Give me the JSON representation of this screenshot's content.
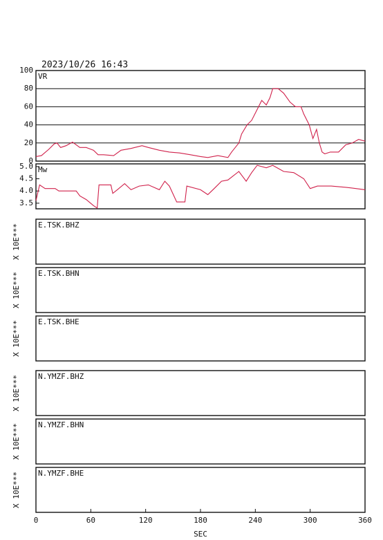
{
  "timestamp": "2023/10/26 16:43",
  "chart_data": [
    {
      "type": "line",
      "title": "VR",
      "color": "#d0204a",
      "grid": true,
      "xlim": [
        0,
        360
      ],
      "ylim": [
        0,
        100
      ],
      "yticks": [
        0,
        20,
        40,
        60,
        80,
        100
      ],
      "x": [
        0,
        6,
        14,
        20,
        23,
        27,
        33,
        40,
        44,
        48,
        55,
        63,
        68,
        74,
        85,
        93,
        104,
        116,
        123,
        135,
        146,
        157,
        169,
        180,
        188,
        199,
        210,
        214,
        222,
        225,
        231,
        236,
        241,
        247,
        252,
        256,
        259,
        265,
        271,
        278,
        284,
        290,
        293,
        299,
        303,
        307,
        310,
        313,
        316,
        322,
        331,
        339,
        346,
        353,
        360
      ],
      "values": [
        5,
        6,
        13,
        19,
        20,
        15,
        17,
        21,
        18,
        15,
        15,
        12,
        7,
        7,
        6,
        12,
        14,
        17,
        15,
        12,
        10,
        9,
        7,
        5,
        4,
        6,
        4,
        10,
        20,
        30,
        40,
        45,
        55,
        67,
        62,
        70,
        80,
        80,
        75,
        65,
        60,
        60,
        52,
        40,
        25,
        35,
        20,
        10,
        8,
        10,
        10,
        18,
        20,
        24,
        22
      ]
    },
    {
      "type": "line",
      "title": "Mw",
      "color": "#d0204a",
      "grid": false,
      "xlim": [
        0,
        360
      ],
      "ylim": [
        3.27,
        5.11
      ],
      "yticks": [
        3.5,
        {
          "value": 4.0,
          "label": "4.0"
        },
        4.5,
        {
          "value": 5.0,
          "label": "5.0"
        }
      ],
      "x": [
        0,
        4,
        10,
        21,
        25,
        44,
        48,
        55,
        63,
        67,
        69,
        82,
        84,
        89,
        97,
        104,
        113,
        123,
        135,
        141,
        146,
        154,
        163,
        165,
        180,
        188,
        195,
        203,
        210,
        222,
        230,
        236,
        242,
        252,
        259,
        271,
        282,
        293,
        300,
        308,
        323,
        339,
        350,
        360
      ],
      "values": [
        3.6,
        4.25,
        4.1,
        4.1,
        4.0,
        4.0,
        3.8,
        3.65,
        3.4,
        3.3,
        4.25,
        4.25,
        3.9,
        4.05,
        4.3,
        4.05,
        4.2,
        4.25,
        4.05,
        4.4,
        4.2,
        3.55,
        3.55,
        4.2,
        4.05,
        3.85,
        4.1,
        4.4,
        4.45,
        4.8,
        4.4,
        4.75,
        5.05,
        4.95,
        5.05,
        4.8,
        4.75,
        4.5,
        4.1,
        4.2,
        4.2,
        4.15,
        4.1,
        4.05
      ]
    },
    {
      "type": "line",
      "title": "E.TSK.BHZ",
      "ylabel": "X 10E***"
    },
    {
      "type": "line",
      "title": "E.TSK.BHN",
      "ylabel": "X 10E***"
    },
    {
      "type": "line",
      "title": "E.TSK.BHE",
      "ylabel": "X 10E***"
    },
    {
      "type": "line",
      "title": "N.YMZF.BHZ",
      "ylabel": "X 10E***"
    },
    {
      "type": "line",
      "title": "N.YMZF.BHN",
      "ylabel": "X 10E***"
    },
    {
      "type": "line",
      "title": "N.YMZF.BHE",
      "ylabel": "X 10E***",
      "xlim": [
        0,
        360
      ],
      "xticks": [
        0,
        60,
        120,
        180,
        240,
        300,
        360
      ],
      "xlabel": "SEC"
    }
  ]
}
